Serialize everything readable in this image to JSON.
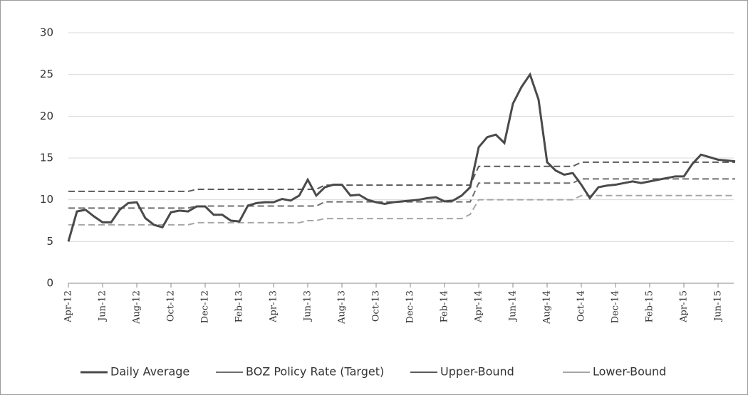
{
  "chart_data": {
    "type": "line",
    "categories": [
      "Apr-12",
      null,
      null,
      null,
      "Jun-12",
      null,
      null,
      null,
      "Aug-12",
      null,
      null,
      null,
      "Oct-12",
      null,
      null,
      null,
      "Dec-12",
      null,
      null,
      null,
      "Feb-13",
      null,
      null,
      null,
      "Apr-13",
      null,
      null,
      null,
      "Jun-13",
      null,
      null,
      null,
      "Aug-13",
      null,
      null,
      null,
      "Oct-13",
      null,
      null,
      null,
      "Dec-13",
      null,
      null,
      null,
      "Feb-14",
      null,
      null,
      null,
      "Apr-14",
      null,
      null,
      null,
      "Jun-14",
      null,
      null,
      null,
      "Aug-14",
      null,
      null,
      null,
      "Oct-14",
      null,
      null,
      null,
      "Dec-14",
      null,
      null,
      null,
      "Feb-15",
      null,
      null,
      null,
      "Apr-15",
      null,
      null,
      null,
      "Jun-15",
      null,
      null
    ],
    "series": [
      {
        "name": "Daily Average",
        "color": "#4a4a4a",
        "width": 3,
        "dash": false,
        "values": [
          5.0,
          8.6,
          8.8,
          8.0,
          7.3,
          7.3,
          8.8,
          9.6,
          9.7,
          7.8,
          7.0,
          6.7,
          8.5,
          8.7,
          8.6,
          9.2,
          9.2,
          8.2,
          8.2,
          7.5,
          7.4,
          9.3,
          9.6,
          9.7,
          9.7,
          10.1,
          9.9,
          10.5,
          12.4,
          10.5,
          11.5,
          11.8,
          11.8,
          10.5,
          10.6,
          10.0,
          9.7,
          9.5,
          9.7,
          9.8,
          9.9,
          10.0,
          10.2,
          10.3,
          9.8,
          9.9,
          10.5,
          11.5,
          16.3,
          17.5,
          17.8,
          16.8,
          21.5,
          23.5,
          25.0,
          22.0,
          14.5,
          13.5,
          13.0,
          13.2,
          11.8,
          10.2,
          11.5,
          11.7,
          11.8,
          12.0,
          12.2,
          12.0,
          12.2,
          12.4,
          12.6,
          12.8,
          12.8,
          14.3,
          15.4,
          15.1,
          14.8,
          14.7,
          14.6
        ]
      },
      {
        "name": "BOZ Policy Rate (Target)",
        "color": "#6e6e6e",
        "width": 2,
        "dash": true,
        "values": [
          9,
          9,
          9,
          9,
          9,
          9,
          9,
          9,
          9,
          9,
          9,
          9,
          9,
          9,
          9,
          9.25,
          9.25,
          9.25,
          9.25,
          9.25,
          9.25,
          9.25,
          9.25,
          9.25,
          9.25,
          9.25,
          9.25,
          9.25,
          9.25,
          9.25,
          9.75,
          9.75,
          9.75,
          9.75,
          9.75,
          9.75,
          9.75,
          9.75,
          9.75,
          9.75,
          9.75,
          9.75,
          9.75,
          9.75,
          9.75,
          9.75,
          9.75,
          9.75,
          12,
          12,
          12,
          12,
          12,
          12,
          12,
          12,
          12,
          12,
          12,
          12,
          12.5,
          12.5,
          12.5,
          12.5,
          12.5,
          12.5,
          12.5,
          12.5,
          12.5,
          12.5,
          12.5,
          12.5,
          12.5,
          12.5,
          12.5,
          12.5,
          12.5,
          12.5,
          12.5
        ]
      },
      {
        "name": "Upper-Bound",
        "color": "#5a5a5a",
        "width": 2,
        "dash": true,
        "values": [
          11,
          11,
          11,
          11,
          11,
          11,
          11,
          11,
          11,
          11,
          11,
          11,
          11,
          11,
          11,
          11.25,
          11.25,
          11.25,
          11.25,
          11.25,
          11.25,
          11.25,
          11.25,
          11.25,
          11.25,
          11.25,
          11.25,
          11.25,
          11.25,
          11.25,
          11.75,
          11.75,
          11.75,
          11.75,
          11.75,
          11.75,
          11.75,
          11.75,
          11.75,
          11.75,
          11.75,
          11.75,
          11.75,
          11.75,
          11.75,
          11.75,
          11.75,
          11.75,
          14,
          14,
          14,
          14,
          14,
          14,
          14,
          14,
          14,
          14,
          14,
          14,
          14.5,
          14.5,
          14.5,
          14.5,
          14.5,
          14.5,
          14.5,
          14.5,
          14.5,
          14.5,
          14.5,
          14.5,
          14.5,
          14.5,
          14.5,
          14.5,
          14.5,
          14.5,
          14.5
        ]
      },
      {
        "name": "Lower-Bound",
        "color": "#a6a6a6",
        "width": 2,
        "dash": true,
        "values": [
          7,
          7,
          7,
          7,
          7,
          7,
          7,
          7,
          7,
          7,
          7,
          7,
          7,
          7,
          7,
          7.25,
          7.25,
          7.25,
          7.25,
          7.25,
          7.25,
          7.25,
          7.25,
          7.25,
          7.25,
          7.25,
          7.25,
          7.25,
          7.5,
          7.5,
          7.75,
          7.75,
          7.75,
          7.75,
          7.75,
          7.75,
          7.75,
          7.75,
          7.75,
          7.75,
          7.75,
          7.75,
          7.75,
          7.75,
          7.75,
          7.75,
          7.75,
          8.25,
          10,
          10,
          10,
          10,
          10,
          10,
          10,
          10,
          10,
          10,
          10,
          10,
          10.5,
          10.5,
          10.5,
          10.5,
          10.5,
          10.5,
          10.5,
          10.5,
          10.5,
          10.5,
          10.5,
          10.5,
          10.5,
          10.5,
          10.5,
          10.5,
          10.5,
          10.5,
          10.5
        ]
      }
    ],
    "ylim": [
      0,
      30
    ],
    "yticks": [
      0,
      5,
      10,
      15,
      20,
      25,
      30
    ],
    "grid": true,
    "legend": "bottom"
  }
}
